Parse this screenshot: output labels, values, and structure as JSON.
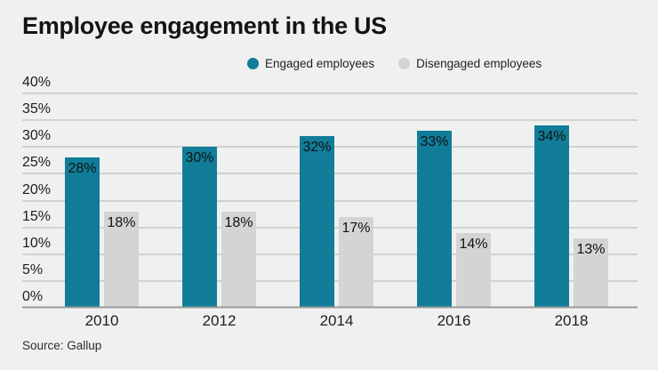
{
  "title": "Employee engagement in the US",
  "source": "Source: Gallup",
  "colors": {
    "background": "#eff1f0",
    "engaged": "#117d99",
    "disengaged": "#d3d4d3",
    "gridline": "#b0b3b2",
    "baseline": "#979b9a",
    "text": "#1a1a1a"
  },
  "chart_data": {
    "type": "bar",
    "title": "Employee engagement in the US",
    "categories": [
      "2010",
      "2012",
      "2014",
      "2016",
      "2018"
    ],
    "series": [
      {
        "name": "Engaged employees",
        "color": "#117d99",
        "values": [
          28,
          30,
          32,
          33,
          34
        ]
      },
      {
        "name": "Disengaged employees",
        "color": "#d3d4d3",
        "values": [
          18,
          18,
          17,
          14,
          13
        ]
      }
    ],
    "xlabel": "",
    "ylabel": "",
    "ylim": [
      0,
      40
    ],
    "ytick_step": 5,
    "value_suffix": "%",
    "grid": true,
    "legend_position": "top-center",
    "value_labels": "inside-top",
    "source": "Source: Gallup"
  }
}
